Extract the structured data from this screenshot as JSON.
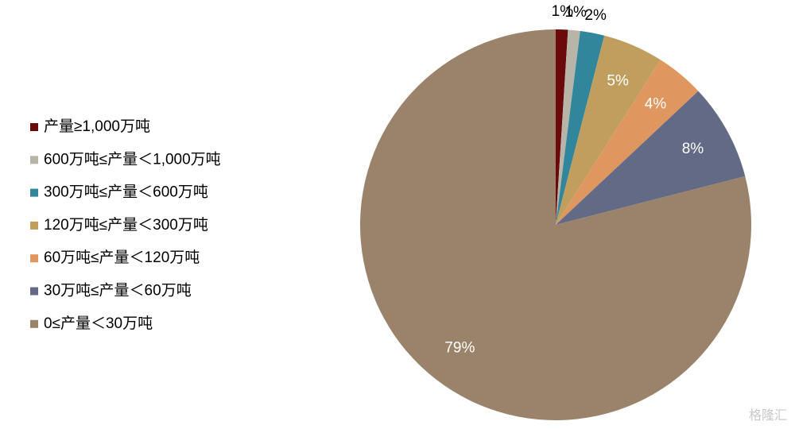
{
  "chart_data": {
    "type": "pie",
    "categories": [
      "产量≥1,000万吨",
      "600万吨≤产量＜1,000万吨",
      "300万吨≤产量＜600万吨",
      "120万吨≤产量＜300万吨",
      "60万吨≤产量＜120万吨",
      "30万吨≤产量＜60万吨",
      "0≤产量＜30万吨"
    ],
    "values": [
      1,
      1,
      2,
      5,
      4,
      8,
      79
    ],
    "value_labels": [
      "1%",
      "1%",
      "2%",
      "5%",
      "4%",
      "8%",
      "79%"
    ],
    "colors": [
      "#6b0a0a",
      "#b9b4a8",
      "#31869c",
      "#c09f5e",
      "#e0975f",
      "#636a86",
      "#9a836a"
    ],
    "legend": "left",
    "watermark": "格隆汇"
  }
}
